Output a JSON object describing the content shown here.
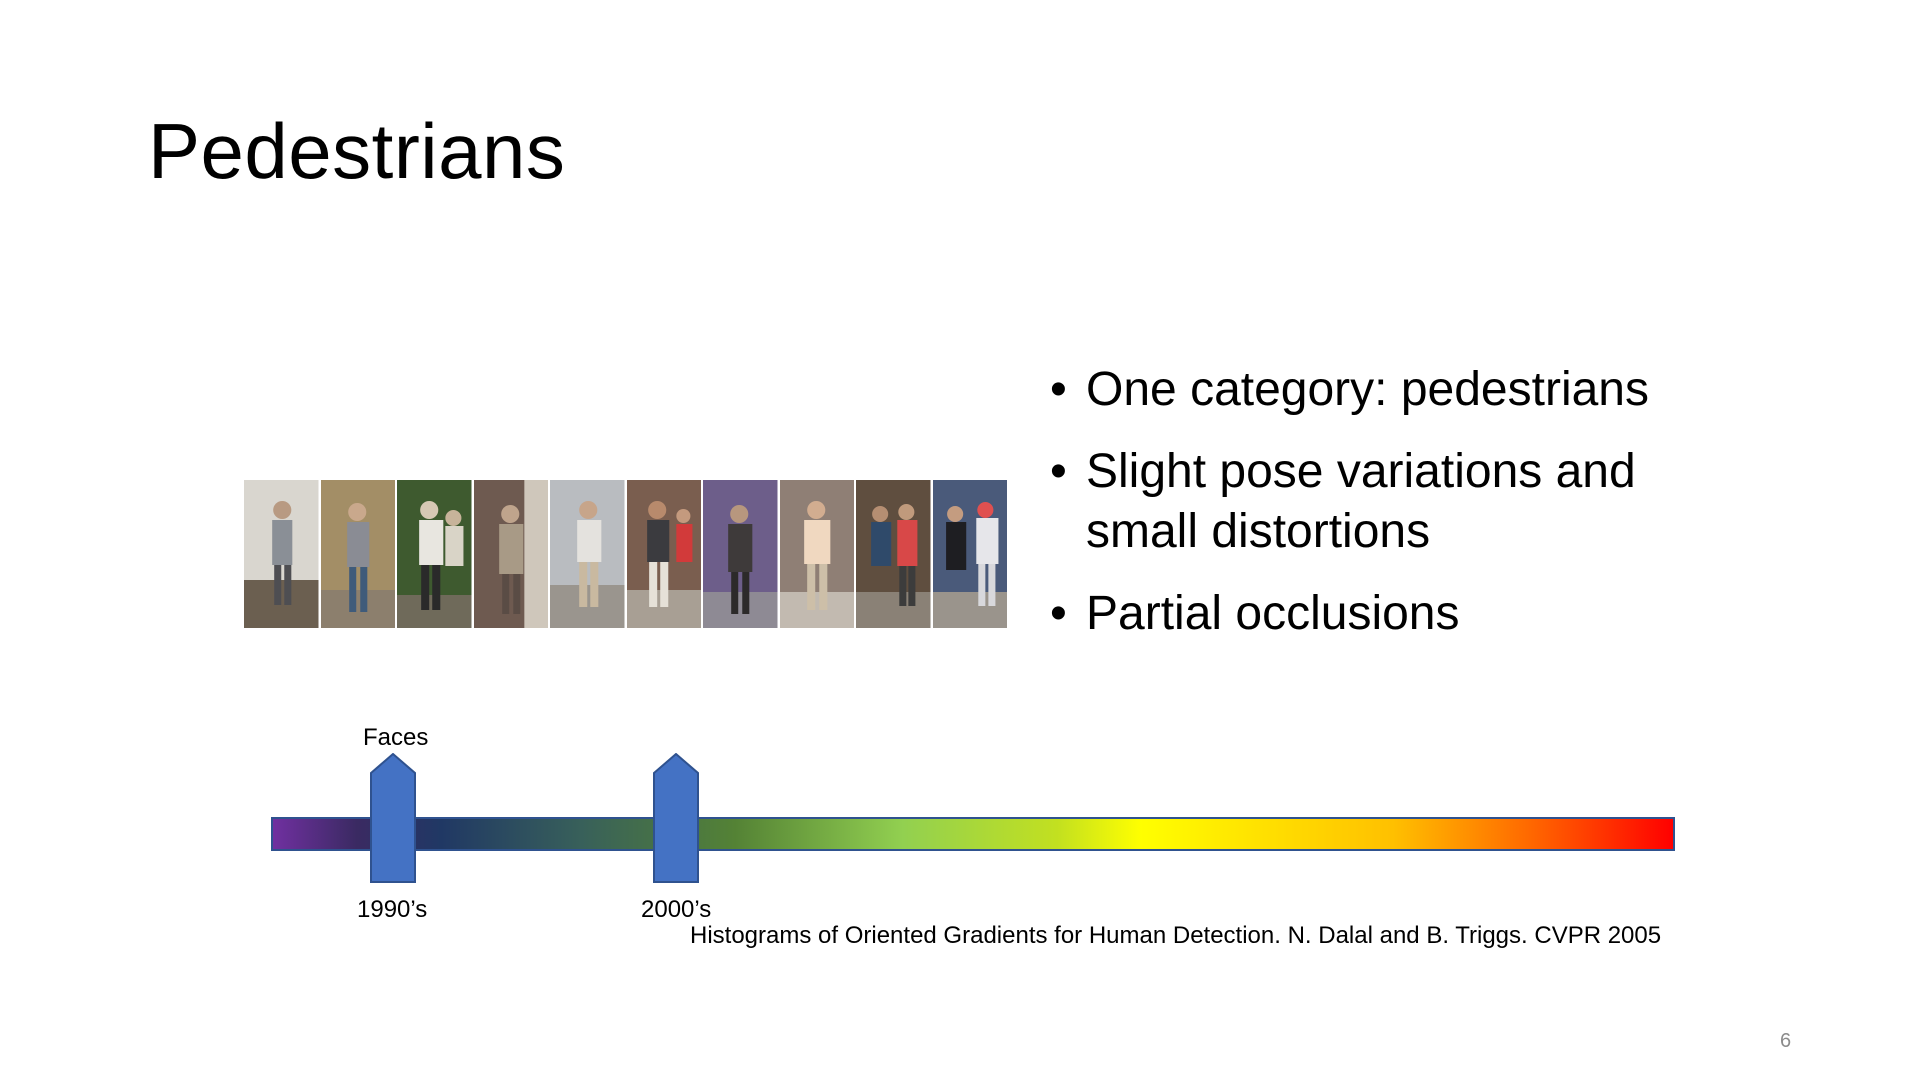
{
  "slide": {
    "title": "Pedestrians",
    "bullets": [
      "One category: pedestrians",
      "Slight pose variations and small distortions",
      "Partial occlusions"
    ],
    "photo_strip": {
      "count": 10,
      "description_icon": "pedestrian-photo"
    },
    "timeline": {
      "top_label": "Faces",
      "markers": [
        "1990’s",
        "2000’s"
      ],
      "colors": [
        "#7030a0",
        "#203864",
        "#548235",
        "#92d050",
        "#ffff00",
        "#ffc000",
        "#ff0000"
      ],
      "marker_color": "#4472c4"
    },
    "citation": "Histograms of Oriented Gradients for Human Detection. N. Dalal and B. Triggs. CVPR 2005",
    "page_number": "6"
  }
}
